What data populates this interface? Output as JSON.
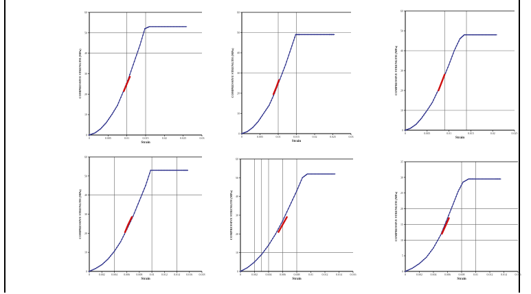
{
  "chart_data": [
    {
      "type": "line",
      "xlabel": "Strain",
      "ylabel": "COMPRESSIVE STRENGTH (MPa)",
      "xlim": [
        0,
        0.03
      ],
      "ylim": [
        0,
        60
      ],
      "xticks": [
        0,
        0.005,
        0.01,
        0.015,
        0.02,
        0.025,
        0.03
      ],
      "xtick_labels": [
        "0",
        "0.005",
        "0.01",
        "0.015",
        "0.02",
        "0.025",
        "0.03"
      ],
      "yticks": [
        0,
        10,
        20,
        30,
        40,
        50,
        60
      ],
      "ytick_labels": [
        "0",
        "10",
        "20",
        "30",
        "40",
        "50",
        "60"
      ],
      "hgrid": [
        40,
        50
      ],
      "vgrid": [
        0.01,
        0.015
      ],
      "series": [
        {
          "role": "curve",
          "color": "#2b2f8a",
          "x": [
            0,
            0.0015,
            0.003,
            0.0045,
            0.006,
            0.0075,
            0.009,
            0.0105,
            0.012,
            0.0135,
            0.0148,
            0.016,
            0.018,
            0.02,
            0.022,
            0.024,
            0.026
          ],
          "y": [
            0,
            1,
            3,
            6,
            10,
            14.5,
            21,
            28,
            36,
            44,
            52,
            53,
            53,
            53,
            53,
            53,
            53
          ]
        },
        {
          "role": "highlight",
          "color": "#d01010",
          "x": [
            0.0092,
            0.01,
            0.0108
          ],
          "y": [
            21.5,
            25,
            28.5
          ]
        }
      ]
    },
    {
      "type": "line",
      "xlabel": "Strain",
      "ylabel": "COMPRESSIVE STRENGTH (MPa)",
      "xlim": [
        0,
        0.03
      ],
      "ylim": [
        0,
        60
      ],
      "xticks": [
        0,
        0.005,
        0.01,
        0.015,
        0.02,
        0.025,
        0.03
      ],
      "xtick_labels": [
        "0",
        "0.005",
        "0.01",
        "0.015",
        "0.02",
        "0.025",
        "0.03"
      ],
      "yticks": [
        0,
        10,
        20,
        30,
        40,
        50,
        60
      ],
      "ytick_labels": [
        "0",
        "10",
        "20",
        "30",
        "40",
        "50",
        "60"
      ],
      "hgrid": [
        30,
        50
      ],
      "vgrid": [
        0.01,
        0.015
      ],
      "series": [
        {
          "role": "curve",
          "color": "#2b2f8a",
          "x": [
            0,
            0.0015,
            0.003,
            0.0045,
            0.006,
            0.0075,
            0.009,
            0.0105,
            0.012,
            0.0135,
            0.0148,
            0.016,
            0.018,
            0.02,
            0.022,
            0.024,
            0.0255
          ],
          "y": [
            0,
            1,
            3,
            6,
            10,
            14,
            20,
            27,
            34,
            42,
            49,
            49,
            49,
            49,
            49,
            49,
            49
          ]
        },
        {
          "role": "highlight",
          "color": "#d01010",
          "x": [
            0.0087,
            0.0095,
            0.0102
          ],
          "y": [
            19.5,
            23,
            26.5
          ]
        }
      ]
    },
    {
      "type": "line",
      "xlabel": "Strain",
      "ylabel": "COMPRESSIVE STRENGTH (MPa)",
      "xlim": [
        0,
        0.025
      ],
      "ylim": [
        0,
        60
      ],
      "xticks": [
        0,
        0.005,
        0.01,
        0.015,
        0.02,
        0.025
      ],
      "xtick_labels": [
        "0",
        "0.005",
        "0.01",
        "0.015",
        "0.02",
        "0.025"
      ],
      "yticks": [
        0,
        10,
        20,
        30,
        40,
        50,
        60
      ],
      "ytick_labels": [
        "0",
        "10",
        "20",
        "30",
        "40",
        "50",
        "60"
      ],
      "hgrid": [
        10,
        40
      ],
      "vgrid": [
        0.009,
        0.014
      ],
      "series": [
        {
          "role": "curve",
          "color": "#2b2f8a",
          "x": [
            0,
            0.0012,
            0.0025,
            0.0037,
            0.005,
            0.0062,
            0.0075,
            0.0087,
            0.01,
            0.0112,
            0.0125,
            0.0135,
            0.015,
            0.0165,
            0.018,
            0.0195,
            0.021
          ],
          "y": [
            0,
            1,
            3,
            6,
            10,
            14,
            20,
            26,
            33,
            40,
            46,
            48,
            48,
            48,
            48,
            48,
            48
          ]
        },
        {
          "role": "highlight",
          "color": "#d01010",
          "x": [
            0.0076,
            0.0083,
            0.009
          ],
          "y": [
            20,
            24,
            28
          ]
        }
      ]
    },
    {
      "type": "line",
      "xlabel": "Strain",
      "ylabel": "COMPRESSIVE STRENGTH (MPa)",
      "xlim": [
        0,
        0.018
      ],
      "ylim": [
        0,
        60
      ],
      "xticks": [
        0,
        0.002,
        0.004,
        0.006,
        0.008,
        0.01,
        0.012,
        0.014,
        0.016,
        0.018
      ],
      "xtick_labels": [
        "0",
        "0.002",
        "0.004",
        "0.006",
        "0.008",
        "0.01",
        "0.012",
        "0.014",
        "0.016",
        "0.018"
      ],
      "yticks": [
        0,
        10,
        20,
        30,
        40,
        50,
        60
      ],
      "ytick_labels": [
        "0",
        "10",
        "20",
        "30",
        "40",
        "50",
        "60"
      ],
      "hgrid": [
        40
      ],
      "vgrid": [
        0.004,
        0.01,
        0.014
      ],
      "series": [
        {
          "role": "curve",
          "color": "#2b2f8a",
          "x": [
            0,
            0.001,
            0.002,
            0.003,
            0.004,
            0.005,
            0.006,
            0.007,
            0.008,
            0.009,
            0.0098,
            0.011,
            0.012,
            0.013,
            0.014,
            0.015,
            0.0158
          ],
          "y": [
            0,
            1.5,
            3.5,
            6.5,
            10.5,
            15.5,
            22,
            29,
            37,
            45,
            53,
            53,
            53,
            53,
            53,
            53,
            53
          ]
        },
        {
          "role": "highlight",
          "color": "#d01010",
          "x": [
            0.0057,
            0.0062,
            0.0068
          ],
          "y": [
            20.5,
            24.5,
            28.5
          ]
        }
      ]
    },
    {
      "type": "line",
      "xlabel": "Strain",
      "ylabel": "COMPRESSIVE STRENGTH (MPa)",
      "xlim": [
        0,
        0.016
      ],
      "ylim": [
        0,
        60
      ],
      "xticks": [
        0,
        0.002,
        0.004,
        0.006,
        0.008,
        0.01,
        0.012,
        0.014,
        0.016
      ],
      "xtick_labels": [
        "0",
        "0.002",
        "0.004",
        "0.006",
        "0.008",
        "0.01",
        "0.012",
        "0.014",
        "0.016"
      ],
      "yticks": [
        0,
        10,
        20,
        30,
        40,
        50,
        60
      ],
      "ytick_labels": [
        "0",
        "10",
        "20",
        "30",
        "40",
        "50",
        "60"
      ],
      "hgrid": [
        10
      ],
      "vgrid": [
        0.002,
        0.003,
        0.004,
        0.006,
        0.008
      ],
      "series": [
        {
          "role": "curve",
          "color": "#2b2f8a",
          "x": [
            0,
            0.001,
            0.002,
            0.003,
            0.004,
            0.005,
            0.006,
            0.007,
            0.008,
            0.0088,
            0.0095,
            0.0105,
            0.0115,
            0.0125,
            0.0135
          ],
          "y": [
            0,
            2,
            5,
            9,
            14,
            20,
            27,
            35,
            43,
            50,
            52,
            52,
            52,
            52,
            52
          ]
        },
        {
          "role": "highlight",
          "color": "#d01010",
          "x": [
            0.0054,
            0.006,
            0.0066
          ],
          "y": [
            21,
            25,
            29
          ]
        }
      ]
    },
    {
      "type": "line",
      "xlabel": "Strain",
      "ylabel": "COMPRESSIVE STRENGTH (MPa)",
      "xlim": [
        0,
        0.016
      ],
      "ylim": [
        0,
        35
      ],
      "xticks": [
        0,
        0.002,
        0.004,
        0.006,
        0.008,
        0.01,
        0.012,
        0.014,
        0.016
      ],
      "xtick_labels": [
        "0",
        "0.002",
        "0.004",
        "0.006",
        "0.008",
        "0.01",
        "0.012",
        "0.014",
        "0.016"
      ],
      "yticks": [
        0,
        5,
        10,
        15,
        20,
        25,
        30,
        35
      ],
      "ytick_labels": [
        "0",
        "5",
        "10",
        "15",
        "20",
        "25",
        "30",
        "35"
      ],
      "hgrid": [
        10,
        15,
        20
      ],
      "vgrid": [
        0.008,
        0.01
      ],
      "series": [
        {
          "role": "curve",
          "color": "#2b2f8a",
          "x": [
            0,
            0.001,
            0.002,
            0.003,
            0.004,
            0.005,
            0.006,
            0.0068,
            0.0075,
            0.0082,
            0.009,
            0.0098,
            0.0108,
            0.0118,
            0.0128,
            0.0136
          ],
          "y": [
            0,
            1,
            2.5,
            4.5,
            7.5,
            11.5,
            17,
            21.5,
            25.5,
            28.5,
            29.5,
            29.5,
            29.5,
            29.5,
            29.5,
            29.5
          ]
        },
        {
          "role": "highlight",
          "color": "#d01010",
          "x": [
            0.0052,
            0.0057,
            0.0062
          ],
          "y": [
            12,
            14.5,
            17
          ]
        }
      ]
    }
  ]
}
